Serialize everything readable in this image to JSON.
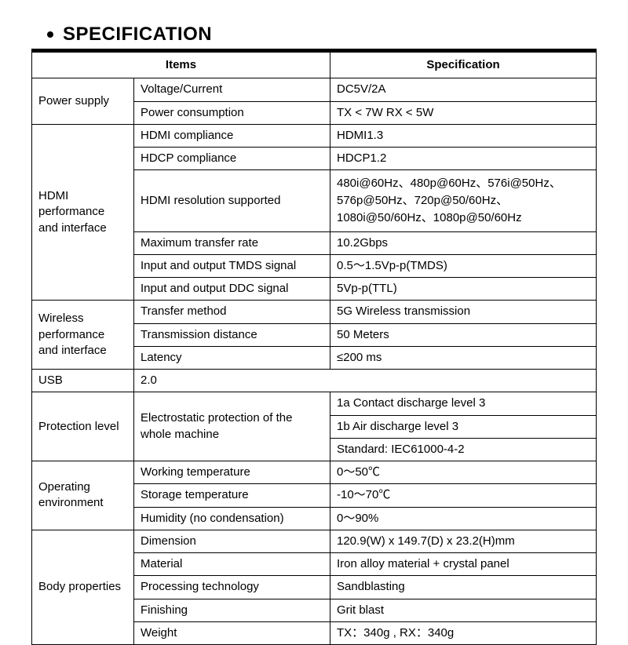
{
  "heading": "SPECIFICATION",
  "header": {
    "items": "Items",
    "spec": "Specification"
  },
  "power_supply": {
    "label": "Power supply",
    "voltage_label": "Voltage/Current",
    "voltage_val": "DC5V/2A",
    "power_label": "Power consumption",
    "power_val": "TX < 7W    RX < 5W"
  },
  "hdmi": {
    "label": "HDMI performance and interface",
    "compliance_label": "HDMI compliance",
    "compliance_val": "HDMI1.3",
    "hdcp_label": "HDCP compliance",
    "hdcp_val": "HDCP1.2",
    "res_label": "HDMI resolution supported",
    "res_val": "480i@60Hz、480p@60Hz、576i@50Hz、576p@50Hz、720p@50/60Hz、1080i@50/60Hz、1080p@50/60Hz",
    "rate_label": "Maximum transfer rate",
    "rate_val": "10.2Gbps",
    "tmds_label": "Input and output TMDS signal",
    "tmds_val": "0.5～1.5Vp-p(TMDS)",
    "ddc_label": "Input and output DDC signal",
    "ddc_val": "5Vp-p(TTL)"
  },
  "wireless": {
    "label": "Wireless performance and interface",
    "method_label": "Transfer method",
    "method_val": "5G Wireless transmission",
    "dist_label": "Transmission distance",
    "dist_val": "50 Meters",
    "lat_label": "Latency",
    "lat_val": "≤200 ms"
  },
  "usb": {
    "label": "USB",
    "val": "2.0"
  },
  "protection": {
    "label": "Protection level",
    "sub_label": "Electrostatic protection of the whole machine",
    "v1": "1a Contact discharge level 3",
    "v2": "1b Air discharge level 3",
    "v3": "Standard: IEC61000-4-2"
  },
  "operating": {
    "label": "Operating environment",
    "work_label": "Working temperature",
    "work_val": "0～50℃",
    "store_label": "Storage temperature",
    "store_val": "-10～70℃",
    "hum_label": "Humidity (no condensation)",
    "hum_val": "0～90%"
  },
  "body": {
    "label": "Body properties",
    "dim_label": "Dimension",
    "dim_val": "120.9(W) x 149.7(D) x 23.2(H)mm",
    "mat_label": "Material",
    "mat_val": "Iron alloy material + crystal panel",
    "proc_label": "Processing technology",
    "proc_val": "Sandblasting",
    "fin_label": "Finishing",
    "fin_val": "Grit blast",
    "weight_label": "Weight",
    "weight_val": "TX：340g ,   RX：340g"
  }
}
